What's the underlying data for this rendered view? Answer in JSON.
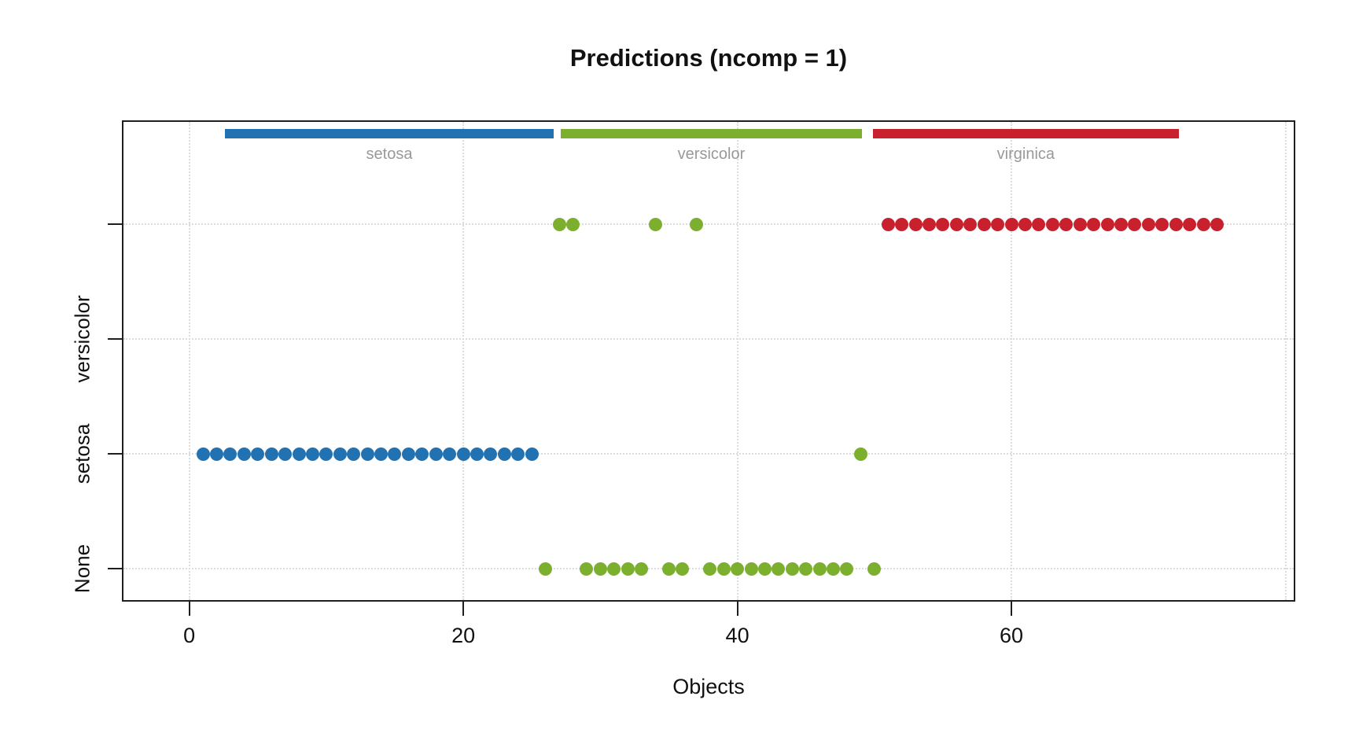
{
  "title": "Predictions (ncomp = 1)",
  "chart_data": {
    "type": "scatter",
    "title": "Predictions (ncomp = 1)",
    "xlabel": "Objects",
    "ylabel": "",
    "xlim": [
      -4.8,
      80.6
    ],
    "x_ticks": [
      0,
      20,
      40,
      60
    ],
    "x_gridlines": [
      0,
      20,
      40,
      60,
      80
    ],
    "grid": true,
    "y_categories": [
      "None",
      "setosa",
      "versicolor",
      ""
    ],
    "colors": {
      "setosa": "#2272B2",
      "versicolor": "#7CAF2E",
      "virginica": "#C9202E",
      "grid": "#dcdcdc",
      "bar_label": "#999999",
      "text": "#111111"
    },
    "class_bars": [
      {
        "label": "setosa",
        "color": "#2272B2",
        "from": 2.6,
        "to": 26.6
      },
      {
        "label": "versicolor",
        "color": "#7CAF2E",
        "from": 27.1,
        "to": 49.1
      },
      {
        "label": "virginica",
        "color": "#C9202E",
        "from": 49.9,
        "to": 72.2
      }
    ],
    "series": [
      {
        "name": "setosa",
        "color": "#2272B2",
        "groups": [
          {
            "row": 1,
            "x": [
              1,
              2,
              3,
              4,
              5,
              6,
              7,
              8,
              9,
              10,
              11,
              12,
              13,
              14,
              15,
              16,
              17,
              18,
              19,
              20,
              21,
              22,
              23,
              24,
              25
            ]
          }
        ]
      },
      {
        "name": "versicolor",
        "color": "#7CAF2E",
        "groups": [
          {
            "row": 3,
            "x": [
              27,
              28,
              34,
              37
            ]
          },
          {
            "row": 1,
            "x": [
              49
            ]
          },
          {
            "row": 0,
            "x": [
              26,
              29,
              30,
              31,
              32,
              33,
              35,
              36,
              38,
              39,
              40,
              41,
              42,
              43,
              44,
              45,
              46,
              47,
              48,
              50
            ]
          }
        ]
      },
      {
        "name": "virginica",
        "color": "#C9202E",
        "groups": [
          {
            "row": 3,
            "x": [
              51,
              52,
              53,
              54,
              55,
              56,
              57,
              58,
              59,
              60,
              61,
              62,
              63,
              64,
              65,
              66,
              67,
              68,
              69,
              70,
              71,
              72,
              73,
              74,
              75
            ]
          }
        ]
      }
    ]
  }
}
